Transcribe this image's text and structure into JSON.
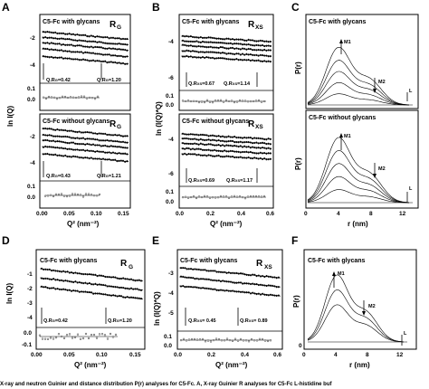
{
  "panels": {
    "A": {
      "label": "A",
      "top": {
        "title": "C5-Fc with glycans",
        "r_label": "R",
        "r_sub": "G",
        "yticks": [
          "-2",
          "-4"
        ],
        "ann1": "Q.R",
        "ann1s": "G",
        "ann1v": "=0.42",
        "ann2": "Q.R",
        "ann2s": "G",
        "ann2v": "=1.20",
        "series": [
          -1.6,
          -2.1,
          -2.6,
          -3.2,
          -3.9
        ]
      },
      "bottom": {
        "title": "C5-Fc without glycans",
        "r_label": "R",
        "r_sub": "G",
        "yticks": [
          "-2",
          "-4"
        ],
        "ann1": "Q.R",
        "ann1s": "G",
        "ann1v": "=0.43",
        "ann2": "Q.R",
        "ann2s": "G",
        "ann2v": "=1.21",
        "series": [
          -1.4,
          -2.0,
          -2.5,
          -3.1,
          -3.8
        ]
      },
      "resid_ticks": [
        "0.1",
        "0.0"
      ],
      "ylabel": "ln I(Q)",
      "xticks": [
        "0.00",
        "0.05",
        "0.10",
        "0.15"
      ],
      "xlabel": "Q² (nm⁻²)"
    },
    "B": {
      "label": "B",
      "top": {
        "title": "C5-Fc with glycans",
        "r_label": "R",
        "r_sub": "XS",
        "yticks": [
          "-4",
          "-6"
        ],
        "ann1": "Q.R",
        "ann1s": "XS",
        "ann1v": "=0.67",
        "ann2": "Q.R",
        "ann2s": "XS",
        "ann2v": "=1.14",
        "series": [
          -3.8,
          -4.2,
          -4.6,
          -5.0,
          -5.5
        ]
      },
      "bottom": {
        "title": "C5-Fc without glycans",
        "r_label": "R",
        "r_sub": "XS",
        "yticks": [
          "-4",
          "-6"
        ],
        "ann1": "Q.R",
        "ann1s": "XS",
        "ann1v": "=0.69",
        "ann2": "Q.R",
        "ann2s": "XS",
        "ann2v": "=1.17",
        "series": [
          -3.8,
          -4.2,
          -4.6,
          -5.0,
          -5.5
        ]
      },
      "resid_ticks": [
        "0.1",
        "0.0"
      ],
      "ylabel": "ln (I(Q)*Q)",
      "xticks": [
        "0.0",
        "0.2",
        "0.4",
        "0.6"
      ],
      "xlabel": "Q² (nm⁻²)"
    },
    "C": {
      "label": "C",
      "top": {
        "title": "C5-Fc with glycans",
        "m1": "M1",
        "m2": "M2",
        "l": "L"
      },
      "bottom": {
        "title": "C5-Fc without glycans",
        "m1": "M1",
        "m2": "M2",
        "l": "L"
      },
      "ylabel": "P(r)",
      "xticks": [
        "0",
        "4",
        "8",
        "12"
      ],
      "xlabel": "r (nm)"
    },
    "D": {
      "label": "D",
      "title": "C5-Fc with glycans",
      "r_label": "R",
      "r_sub": "G",
      "yticks": [
        "-1",
        "-2",
        "-3",
        "-4"
      ],
      "ann1": "Q.R",
      "ann1s": "G",
      "ann1v": "=0.42",
      "ann2": "Q.R",
      "ann2s": "G",
      "ann2v": "=1.20",
      "resid_ticks": [
        "0.0",
        "-0.1"
      ],
      "ylabel": "ln I(Q)",
      "xticks": [
        "0.00",
        "0.05",
        "0.10",
        "0.15"
      ],
      "xlabel": "Q² (nm⁻²)"
    },
    "E": {
      "label": "E",
      "title": "C5-Fc with glycans",
      "r_label": "R",
      "r_sub": "XS",
      "yticks": [
        "-3",
        "-4",
        "-5"
      ],
      "ann1": "Q.R",
      "ann1s": "XS",
      "ann1v": "= 0.45",
      "ann2": "Q.R",
      "ann2s": "XS",
      "ann2v": "= 0.89",
      "resid_ticks": [
        "0.1",
        "0.0"
      ],
      "ylabel": "ln (I(Q)*Q)",
      "xticks": [
        "0.0",
        "0.2",
        "0.4",
        "0.6"
      ],
      "xlabel": "Q² (nm⁻²)"
    },
    "F": {
      "label": "F",
      "title": "C5-Fc with glycans",
      "m1": "M1",
      "m2": "M2",
      "l": "L",
      "yticks": [
        "0"
      ],
      "ylabel": "P(r)",
      "xticks": [
        "0",
        "4",
        "8",
        "12"
      ],
      "xlabel": "r (nm)"
    }
  },
  "caption": "X-ray and neutron Guinier and distance distribution P(r) analyses for C5-Fc. A, X-ray Guinier R  analyses for C5-Fc L-histidine buf"
}
